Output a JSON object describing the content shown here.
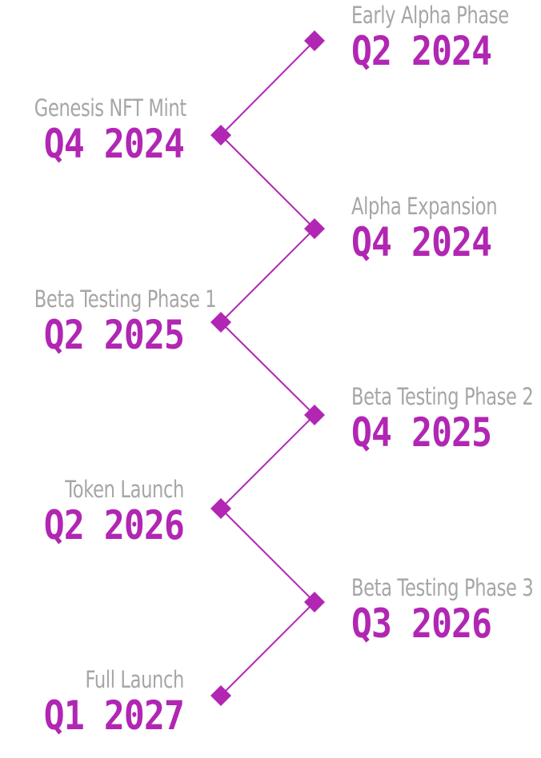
{
  "colors": {
    "accent": "#b126b3",
    "label": "#a6a6a6",
    "background": "#ffffff"
  },
  "milestones": [
    {
      "label": "Early Alpha Phase",
      "date": "Q2 2024",
      "side": "right"
    },
    {
      "label": "Genesis NFT Mint",
      "date": "Q4 2024",
      "side": "left"
    },
    {
      "label": "Alpha Expansion",
      "date": "Q4 2024",
      "side": "right"
    },
    {
      "label": "Beta Testing Phase 1",
      "date": "Q2 2025",
      "side": "left"
    },
    {
      "label": "Beta Testing Phase 2",
      "date": "Q4 2025",
      "side": "right"
    },
    {
      "label": "Token Launch",
      "date": "Q2 2026",
      "side": "left"
    },
    {
      "label": "Beta Testing Phase 3",
      "date": "Q3 2026",
      "side": "right"
    },
    {
      "label": "Full Launch",
      "date": "Q1 2027",
      "side": "left"
    }
  ]
}
